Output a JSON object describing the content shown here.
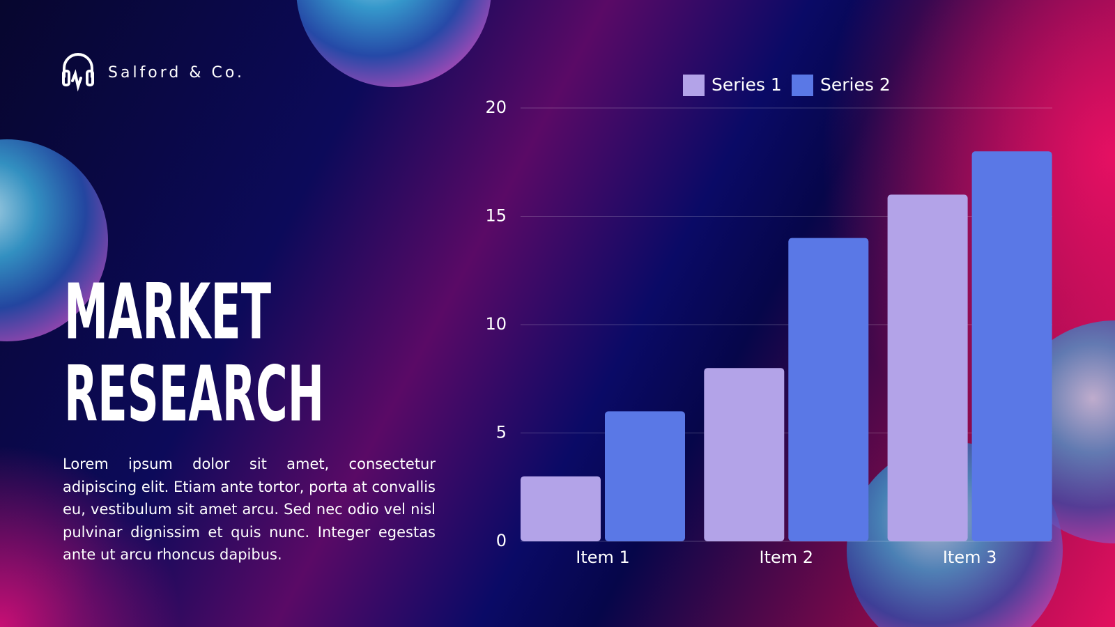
{
  "brand": "Salford & Co.",
  "heading": [
    "MARKET",
    "RESEARCH"
  ],
  "body": "Lorem ipsum dolor sit amet, consectetur adipiscing elit. Etiam ante tortor, porta at convallis eu, vestibulum sit amet arcu. Sed nec odio vel nisl pulvinar dignissim et quis nunc. Integer egestas ante ut arcu rhoncus dapibus.",
  "chart_data": {
    "type": "bar",
    "categories": [
      "Item 1",
      "Item 2",
      "Item 3"
    ],
    "series": [
      {
        "name": "Series 1",
        "color": "#b3a3e8",
        "values": [
          3,
          8,
          16
        ]
      },
      {
        "name": "Series 2",
        "color": "#5a78e6",
        "values": [
          6,
          14,
          18
        ]
      }
    ],
    "ylim": [
      0,
      20
    ],
    "yticks": [
      0,
      5,
      10,
      15,
      20
    ],
    "grid": true,
    "legend": "top"
  }
}
